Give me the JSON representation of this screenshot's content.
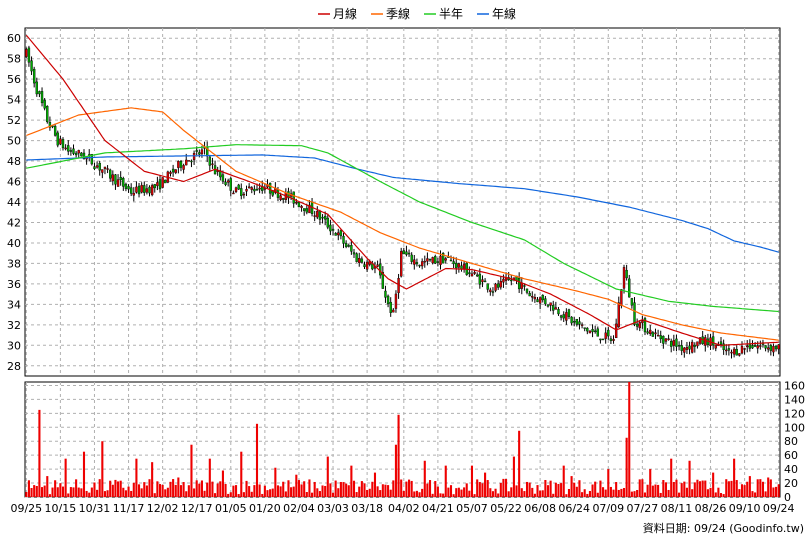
{
  "chart_data": {
    "type": "candlestick",
    "legend": [
      {
        "name": "月線",
        "color": "#cc0000"
      },
      {
        "name": "季線",
        "color": "#ff6600"
      },
      {
        "name": "半年",
        "color": "#22cc22"
      },
      {
        "name": "年線",
        "color": "#1166dd"
      }
    ],
    "legend_position": "top-center",
    "grid": true,
    "price_axis": {
      "ticks": [
        28,
        30,
        32,
        34,
        36,
        38,
        40,
        42,
        44,
        46,
        48,
        50,
        52,
        54,
        56,
        58,
        60
      ],
      "range": [
        27,
        61
      ]
    },
    "volume_axis": {
      "ticks": [
        0,
        20,
        40,
        60,
        80,
        100,
        120,
        140,
        160
      ],
      "range": [
        0,
        165
      ]
    },
    "x_ticks": [
      "09/25",
      "10/15",
      "10/31",
      "11/17",
      "12/02",
      "12/17",
      "01/05",
      "01/20",
      "02/04",
      "03/03",
      "03/18",
      "04/02",
      "04/21",
      "05/07",
      "05/22",
      "06/08",
      "06/24",
      "07/09",
      "07/27",
      "08/11",
      "08/26",
      "09/10",
      "09/24"
    ],
    "colors": {
      "up": "#dd0000",
      "down": "#00aa00",
      "volume": "#ee0000",
      "grid": "#b0b0b0"
    },
    "price_keypoints": [
      [
        0,
        58.5
      ],
      [
        4,
        55
      ],
      [
        8,
        52
      ],
      [
        12,
        50
      ],
      [
        16,
        49
      ],
      [
        22,
        48.5
      ],
      [
        30,
        47
      ],
      [
        40,
        45
      ],
      [
        50,
        45.5
      ],
      [
        60,
        48
      ],
      [
        68,
        49
      ],
      [
        72,
        47
      ],
      [
        80,
        45
      ],
      [
        90,
        45.5
      ],
      [
        100,
        44.5
      ],
      [
        110,
        43
      ],
      [
        118,
        41
      ],
      [
        126,
        38.5
      ],
      [
        134,
        37.5
      ],
      [
        138,
        34
      ],
      [
        140,
        33
      ],
      [
        143,
        39
      ],
      [
        150,
        38
      ],
      [
        160,
        38.5
      ],
      [
        170,
        37
      ],
      [
        178,
        35.5
      ],
      [
        186,
        36.5
      ],
      [
        192,
        35
      ],
      [
        200,
        34
      ],
      [
        210,
        32
      ],
      [
        218,
        31
      ],
      [
        224,
        30.5
      ],
      [
        228,
        37.5
      ],
      [
        232,
        32.5
      ],
      [
        240,
        31
      ],
      [
        250,
        29.8
      ],
      [
        260,
        30.5
      ],
      [
        268,
        29.2
      ],
      [
        276,
        30
      ],
      [
        287,
        29.8
      ]
    ],
    "ma_month": [
      [
        0,
        60.3
      ],
      [
        14,
        56
      ],
      [
        30,
        50
      ],
      [
        45,
        47
      ],
      [
        60,
        46
      ],
      [
        72,
        47.2
      ],
      [
        85,
        46
      ],
      [
        100,
        44.5
      ],
      [
        115,
        42.8
      ],
      [
        130,
        38.5
      ],
      [
        138,
        36.5
      ],
      [
        145,
        35.5
      ],
      [
        160,
        37.5
      ],
      [
        170,
        37.4
      ],
      [
        185,
        36.5
      ],
      [
        200,
        35
      ],
      [
        215,
        33
      ],
      [
        225,
        31.5
      ],
      [
        235,
        32.5
      ],
      [
        250,
        31.2
      ],
      [
        265,
        30
      ],
      [
        287,
        30.3
      ]
    ],
    "ma_quarter": [
      [
        0,
        50.5
      ],
      [
        20,
        52.5
      ],
      [
        40,
        53.2
      ],
      [
        52,
        52.8
      ],
      [
        60,
        51
      ],
      [
        80,
        47
      ],
      [
        100,
        44.8
      ],
      [
        120,
        43
      ],
      [
        135,
        41
      ],
      [
        150,
        39.5
      ],
      [
        170,
        38
      ],
      [
        190,
        36.5
      ],
      [
        210,
        35.3
      ],
      [
        222,
        34.5
      ],
      [
        235,
        33
      ],
      [
        250,
        32
      ],
      [
        265,
        31.2
      ],
      [
        287,
        30.5
      ]
    ],
    "ma_half": [
      [
        0,
        47.3
      ],
      [
        30,
        48.8
      ],
      [
        60,
        49.2
      ],
      [
        80,
        49.6
      ],
      [
        105,
        49.5
      ],
      [
        115,
        48.8
      ],
      [
        135,
        46
      ],
      [
        150,
        44
      ],
      [
        170,
        42
      ],
      [
        190,
        40.3
      ],
      [
        205,
        38
      ],
      [
        225,
        35.5
      ],
      [
        245,
        34.3
      ],
      [
        262,
        33.8
      ],
      [
        287,
        33.3
      ]
    ],
    "ma_year": [
      [
        0,
        48.1
      ],
      [
        30,
        48.4
      ],
      [
        60,
        48.5
      ],
      [
        90,
        48.6
      ],
      [
        110,
        48.3
      ],
      [
        125,
        47.3
      ],
      [
        140,
        46.4
      ],
      [
        165,
        45.8
      ],
      [
        190,
        45.3
      ],
      [
        210,
        44.5
      ],
      [
        230,
        43.5
      ],
      [
        250,
        42.2
      ],
      [
        260,
        41.4
      ],
      [
        270,
        40.2
      ],
      [
        280,
        39.6
      ],
      [
        287,
        39.1
      ]
    ],
    "volume_spikes": [
      [
        5,
        125
      ],
      [
        8,
        30
      ],
      [
        15,
        55
      ],
      [
        22,
        65
      ],
      [
        29,
        80
      ],
      [
        42,
        55
      ],
      [
        48,
        50
      ],
      [
        58,
        28
      ],
      [
        63,
        75
      ],
      [
        70,
        55
      ],
      [
        75,
        38
      ],
      [
        82,
        65
      ],
      [
        88,
        105
      ],
      [
        95,
        42
      ],
      [
        103,
        32
      ],
      [
        115,
        58
      ],
      [
        124,
        45
      ],
      [
        133,
        35
      ],
      [
        141,
        75
      ],
      [
        142,
        118
      ],
      [
        152,
        52
      ],
      [
        160,
        45
      ],
      [
        170,
        45
      ],
      [
        175,
        35
      ],
      [
        186,
        58
      ],
      [
        188,
        95
      ],
      [
        205,
        45
      ],
      [
        208,
        30
      ],
      [
        222,
        40
      ],
      [
        229,
        85
      ],
      [
        230,
        165
      ],
      [
        238,
        40
      ],
      [
        246,
        55
      ],
      [
        253,
        52
      ],
      [
        262,
        35
      ],
      [
        270,
        55
      ],
      [
        276,
        30
      ],
      [
        283,
        28
      ]
    ],
    "credit": "資料日期: 09/24  (Goodinfo.tw)"
  }
}
